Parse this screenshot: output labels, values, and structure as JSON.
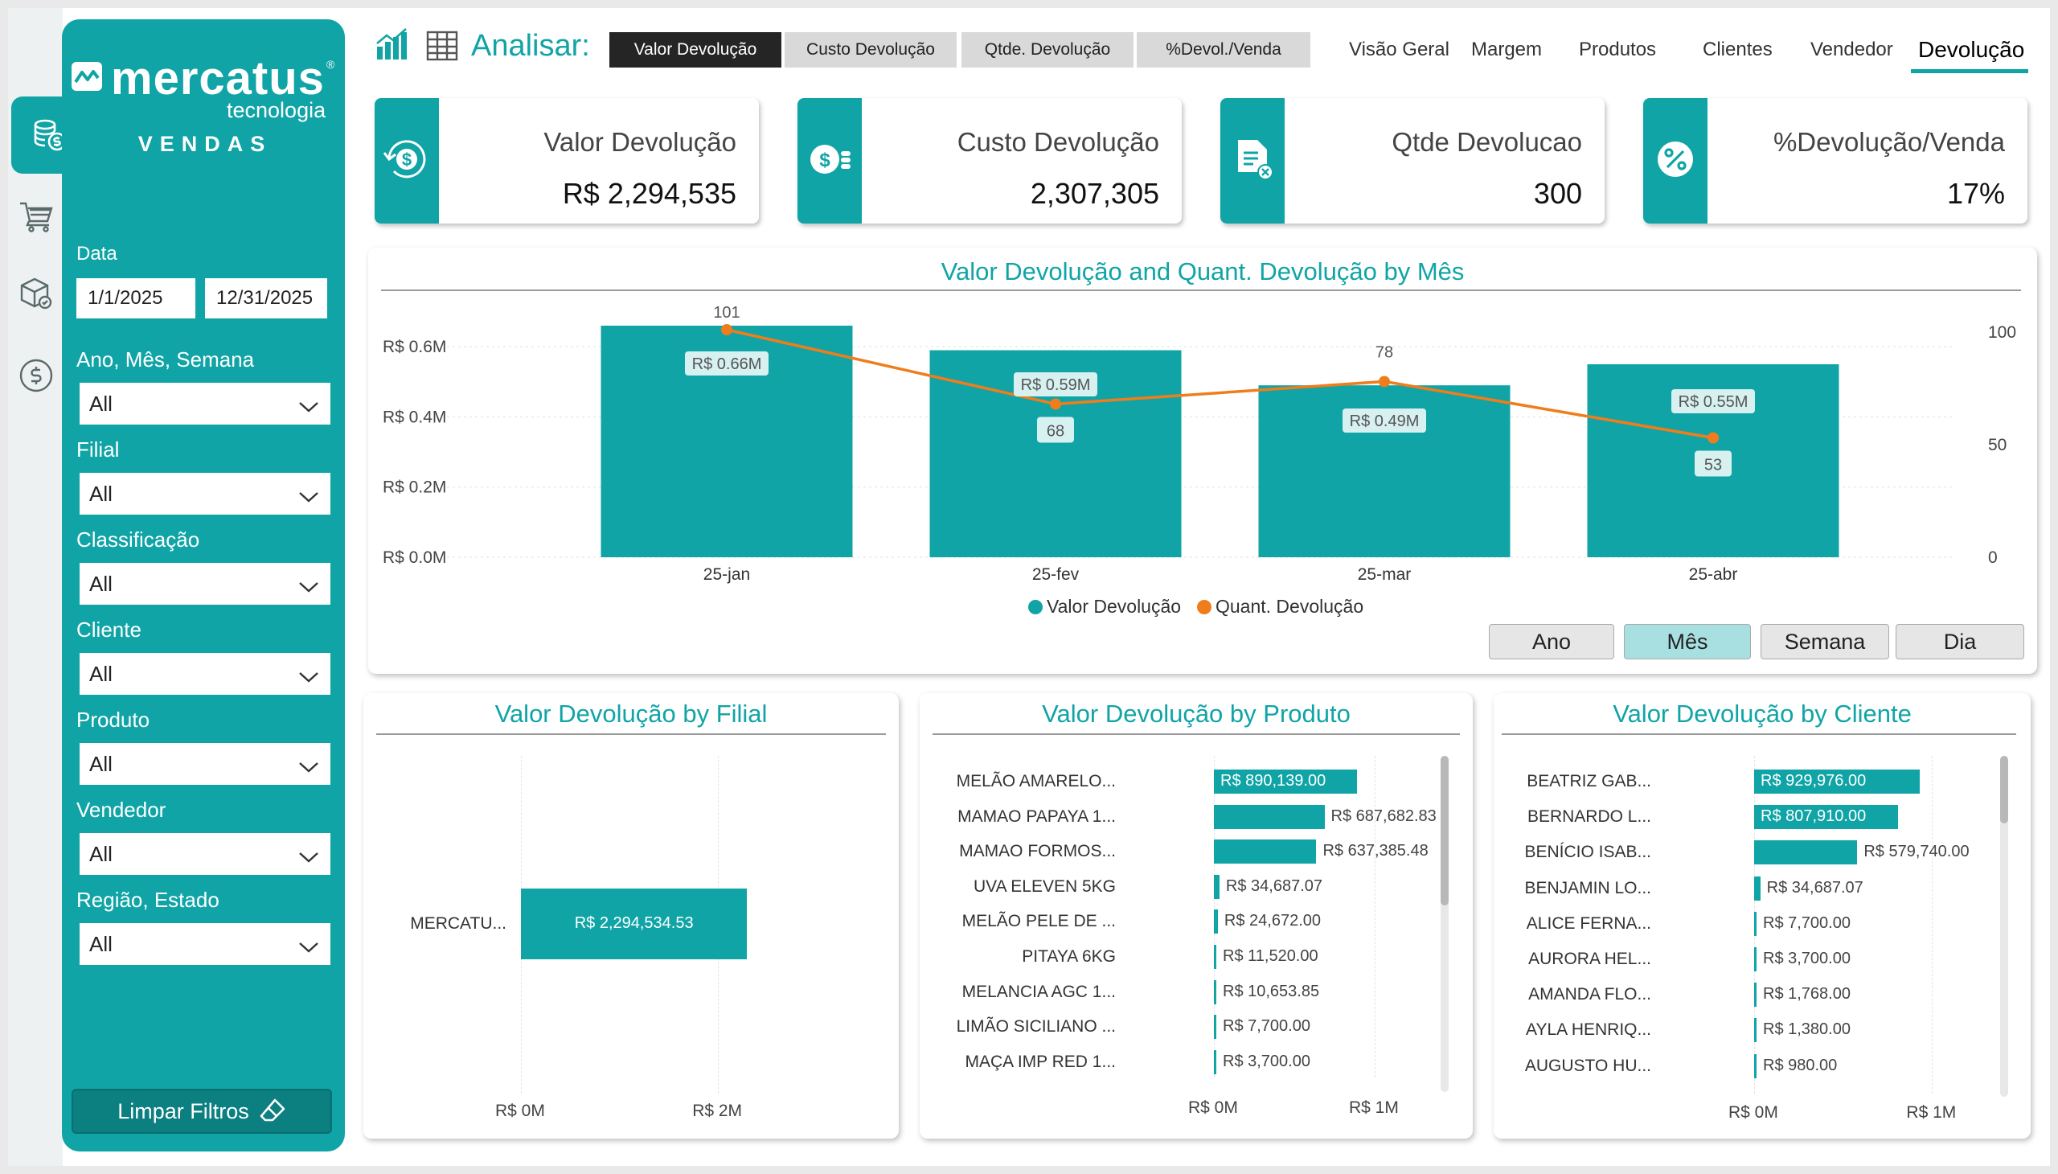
{
  "brand": {
    "name": "mercatus",
    "sub": "tecnologia",
    "module": "VENDAS"
  },
  "rail": [
    "coins-icon",
    "cart-icon",
    "box-icon",
    "dollar-circle-icon"
  ],
  "filters": {
    "date_label": "Data",
    "date_start": "1/1/2025",
    "date_end": "12/31/2025",
    "items": [
      {
        "label": "Ano, Mês, Semana",
        "value": "All"
      },
      {
        "label": "Filial",
        "value": "All"
      },
      {
        "label": "Classificação",
        "value": "All"
      },
      {
        "label": "Cliente",
        "value": "All"
      },
      {
        "label": "Produto",
        "value": "All"
      },
      {
        "label": "Vendedor",
        "value": "All"
      },
      {
        "label": "Região, Estado",
        "value": "All"
      }
    ],
    "clear_label": "Limpar Filtros"
  },
  "analyze": {
    "label": "Analisar:",
    "tabs": [
      "Valor Devolução",
      "Custo Devolução",
      "Qtde. Devolução",
      "%Devol./Venda"
    ],
    "active": 0
  },
  "nav": {
    "tabs": [
      "Visão Geral",
      "Margem",
      "Produtos",
      "Clientes",
      "Vendedor",
      "Devolução"
    ],
    "active": 5
  },
  "kpis": [
    {
      "title": "Valor Devolução",
      "value": "R$ 2,294,535",
      "icon": "refund-dollar-icon"
    },
    {
      "title": "Custo Devolução",
      "value": "2,307,305",
      "icon": "coins-dollar-icon"
    },
    {
      "title": "Qtde Devolucao",
      "value": "300",
      "icon": "document-return-icon"
    },
    {
      "title": "%Devolução/Venda",
      "value": "17%",
      "icon": "percent-icon"
    }
  ],
  "main_chart": {
    "title": "Valor Devolução and Quant. Devolução by Mês",
    "granularity": [
      "Ano",
      "Mês",
      "Semana",
      "Dia"
    ],
    "granularity_active": 1
  },
  "chart_data": [
    {
      "type": "bar",
      "title": "Valor Devolução and Quant. Devolução by Mês",
      "categories": [
        "25-jan",
        "25-fev",
        "25-mar",
        "25-abr"
      ],
      "series": [
        {
          "name": "Valor Devolução",
          "type": "bar",
          "values": [
            0.66,
            0.59,
            0.49,
            0.55
          ],
          "labels": [
            "R$ 0.66M",
            "R$ 0.59M",
            "R$ 0.49M",
            "R$ 0.55M"
          ],
          "color": "#10a4a6"
        },
        {
          "name": "Quant. Devolução",
          "type": "line",
          "values": [
            101,
            68,
            78,
            53
          ],
          "labels": [
            "101",
            "68",
            "78",
            "53"
          ],
          "color": "#f07d1c"
        }
      ],
      "y_left": {
        "ticks": [
          "R$ 0.0M",
          "R$ 0.2M",
          "R$ 0.4M",
          "R$ 0.6M"
        ],
        "tick_values": [
          0,
          0.2,
          0.4,
          0.6
        ],
        "ylim": [
          0,
          0.66
        ]
      },
      "y_right": {
        "ticks": [
          "0",
          "50",
          "100"
        ],
        "tick_values": [
          0,
          50,
          100
        ],
        "ylim": [
          0,
          101
        ]
      },
      "legend": "bottom-center"
    },
    {
      "type": "bar",
      "title": "Valor Devolução by Filial",
      "orientation": "horizontal",
      "categories": [
        "MERCATU..."
      ],
      "values": [
        2294534.53
      ],
      "labels": [
        "R$ 2,294,534.53"
      ],
      "x_ticks": [
        "R$ 0M",
        "R$ 2M"
      ],
      "x_tick_values": [
        0,
        2000000
      ],
      "xlim": [
        0,
        2300000
      ]
    },
    {
      "type": "bar",
      "title": "Valor Devolução by Produto",
      "orientation": "horizontal",
      "categories": [
        "MELÃO AMARELO...",
        "MAMAO PAPAYA 1...",
        "MAMAO FORMOS...",
        "UVA ELEVEN 5KG",
        "MELÃO PELE DE ...",
        "PITAYA 6KG",
        "MELANCIA AGC 1...",
        "LIMÃO SICILIANO ...",
        "MAÇA IMP RED 1..."
      ],
      "values": [
        890139.0,
        687682.83,
        637385.48,
        34687.07,
        24672.0,
        11520.0,
        10653.85,
        7700.0,
        3700.0
      ],
      "labels": [
        "R$ 890,139.00",
        "R$ 687,682.83",
        "R$ 637,385.48",
        "R$ 34,687.07",
        "R$ 24,672.00",
        "R$ 11,520.00",
        "R$ 10,653.85",
        "R$ 7,700.00",
        "R$ 3,700.00"
      ],
      "x_ticks": [
        "R$ 0M",
        "R$ 1M"
      ],
      "x_tick_values": [
        0,
        1000000
      ],
      "xlim": [
        0,
        1200000
      ]
    },
    {
      "type": "bar",
      "title": "Valor Devolução by Cliente",
      "orientation": "horizontal",
      "categories": [
        "BEATRIZ GAB...",
        "BERNARDO L...",
        "BENÍCIO ISAB...",
        "BENJAMIN LO...",
        "ALICE FERNA...",
        "AURORA HEL...",
        "AMANDA FLO...",
        "AYLA HENRIQ...",
        "AUGUSTO HU..."
      ],
      "values": [
        929976.0,
        807910.0,
        579740.0,
        34687.07,
        7700.0,
        3700.0,
        1768.0,
        1380.0,
        980.0
      ],
      "labels": [
        "R$ 929,976.00",
        "R$ 807,910.00",
        "R$ 579,740.00",
        "R$ 34,687.07",
        "R$ 7,700.00",
        "R$ 3,700.00",
        "R$ 1,768.00",
        "R$ 1,380.00",
        "R$ 980.00"
      ],
      "x_ticks": [
        "R$ 0M",
        "R$ 1M"
      ],
      "x_tick_values": [
        0,
        1000000
      ],
      "xlim": [
        0,
        1120000
      ]
    }
  ]
}
